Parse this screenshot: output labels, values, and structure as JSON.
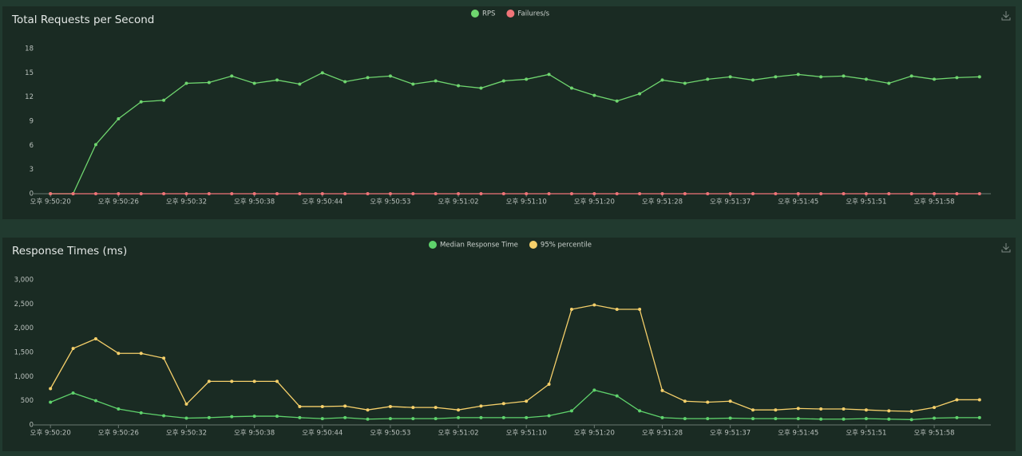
{
  "chart_data": [
    {
      "type": "line",
      "title": "Total Requests per Second",
      "categories": [
        "오후 9:50:20",
        null,
        null,
        "오후 9:50:26",
        null,
        null,
        "오후 9:50:32",
        null,
        null,
        "오후 9:50:38",
        null,
        null,
        "오후 9:50:44",
        null,
        null,
        "오후 9:50:53",
        null,
        null,
        "오후 9:51:02",
        null,
        null,
        "오후 9:51:10",
        null,
        null,
        "오후 9:51:20",
        null,
        null,
        "오후 9:51:28",
        null,
        null,
        "오후 9:51:37",
        null,
        null,
        "오후 9:51:45",
        null,
        null,
        "오후 9:51:51",
        null,
        null,
        "오후 9:51:58",
        null,
        null
      ],
      "series": [
        {
          "name": "RPS",
          "color": "#6fd66f",
          "values": [
            0,
            0,
            6.1,
            9.3,
            11.4,
            11.6,
            13.7,
            13.8,
            14.6,
            13.7,
            14.1,
            13.6,
            15.0,
            13.9,
            14.4,
            14.6,
            13.6,
            14.0,
            13.4,
            13.1,
            14.0,
            14.2,
            14.8,
            13.1,
            12.2,
            11.5,
            12.4,
            14.1,
            13.7,
            14.2,
            14.5,
            14.1,
            14.5,
            14.8,
            14.5,
            14.6,
            14.2,
            13.7,
            14.6,
            14.2,
            14.4,
            14.5
          ]
        },
        {
          "name": "Failures/s",
          "color": "#f07478",
          "values": [
            0,
            0,
            0,
            0,
            0,
            0,
            0,
            0,
            0,
            0,
            0,
            0,
            0,
            0,
            0,
            0,
            0,
            0,
            0,
            0,
            0,
            0,
            0,
            0,
            0,
            0,
            0,
            0,
            0,
            0,
            0,
            0,
            0,
            0,
            0,
            0,
            0,
            0,
            0,
            0,
            0,
            0
          ]
        }
      ],
      "ylim": [
        0,
        18
      ],
      "yticks": [
        0,
        3,
        6,
        9,
        12,
        15,
        18
      ]
    },
    {
      "type": "line",
      "title": "Response Times (ms)",
      "categories": [
        "오후 9:50:20",
        null,
        null,
        "오후 9:50:26",
        null,
        null,
        "오후 9:50:32",
        null,
        null,
        "오후 9:50:38",
        null,
        null,
        "오후 9:50:44",
        null,
        null,
        "오후 9:50:53",
        null,
        null,
        "오후 9:51:02",
        null,
        null,
        "오후 9:51:10",
        null,
        null,
        "오후 9:51:20",
        null,
        null,
        "오후 9:51:28",
        null,
        null,
        "오후 9:51:37",
        null,
        null,
        "오후 9:51:45",
        null,
        null,
        "오후 9:51:51",
        null,
        null,
        "오후 9:51:58",
        null,
        null
      ],
      "series": [
        {
          "name": "Median Response Time",
          "color": "#5fd36c",
          "values": [
            470,
            660,
            500,
            330,
            250,
            190,
            140,
            150,
            170,
            180,
            180,
            150,
            130,
            150,
            120,
            130,
            130,
            130,
            150,
            150,
            150,
            150,
            190,
            290,
            720,
            600,
            290,
            150,
            130,
            130,
            140,
            130,
            130,
            130,
            120,
            120,
            130,
            120,
            110,
            140,
            150,
            150
          ]
        },
        {
          "name": "95% percentile",
          "color": "#f6d06a",
          "values": [
            750,
            1580,
            1780,
            1480,
            1480,
            1380,
            430,
            900,
            900,
            900,
            900,
            380,
            380,
            390,
            310,
            380,
            360,
            360,
            310,
            390,
            440,
            490,
            840,
            2390,
            2480,
            2390,
            2390,
            710,
            490,
            470,
            490,
            310,
            310,
            340,
            330,
            330,
            310,
            290,
            280,
            360,
            520,
            520
          ]
        }
      ],
      "ylim": [
        0,
        3000
      ],
      "yticks": [
        0,
        500,
        {
          "value": 1000,
          "label": "1,000"
        },
        {
          "value": 1500,
          "label": "1,500"
        },
        {
          "value": 2000,
          "label": "2,000"
        },
        {
          "value": 2500,
          "label": "2,500"
        },
        {
          "value": 3000,
          "label": "3,000"
        }
      ]
    }
  ]
}
